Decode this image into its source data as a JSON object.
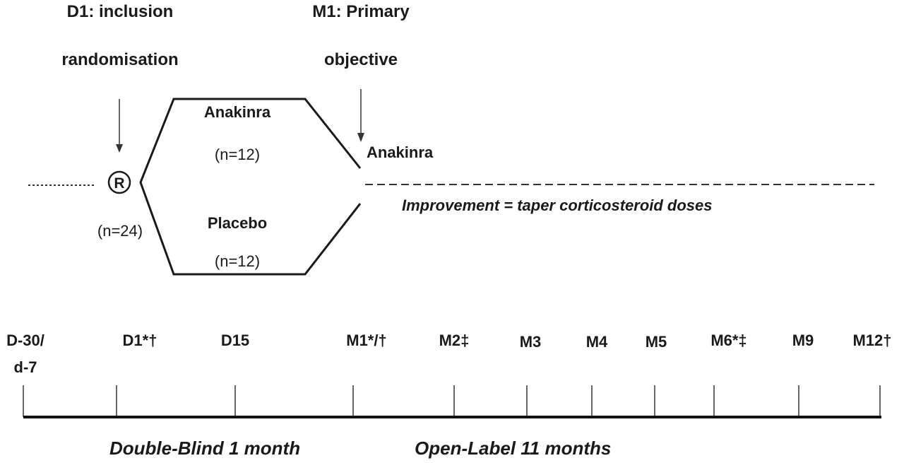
{
  "header": {
    "d1_line1": "D1:  inclusion",
    "d1_line2": "randomisation",
    "m1_line1": "M1: Primary",
    "m1_line2": "objective"
  },
  "arms": {
    "randomisation_symbol": "R",
    "total_n": "(n=24)",
    "anakinra_label": "Anakinra",
    "anakinra_n": "(n=12)",
    "placebo_label": "Placebo",
    "placebo_n": "(n=12)",
    "openlabel_arm_label": "Anakinra",
    "improvement_note": "Improvement = taper corticosteroid doses"
  },
  "timeline": {
    "ticks": [
      {
        "label": "D-30/",
        "label2": "d-7"
      },
      {
        "label": "D1*†"
      },
      {
        "label": "D15"
      },
      {
        "label": "M1*/†"
      },
      {
        "label": "M2‡"
      },
      {
        "label": "M3"
      },
      {
        "label": "M4"
      },
      {
        "label": "M5"
      },
      {
        "label": "M6*‡"
      },
      {
        "label": "M9"
      },
      {
        "label": "M12†"
      }
    ],
    "phase1_label": "Double-Blind 1 month",
    "phase2_label": "Open-Label 11 months"
  }
}
